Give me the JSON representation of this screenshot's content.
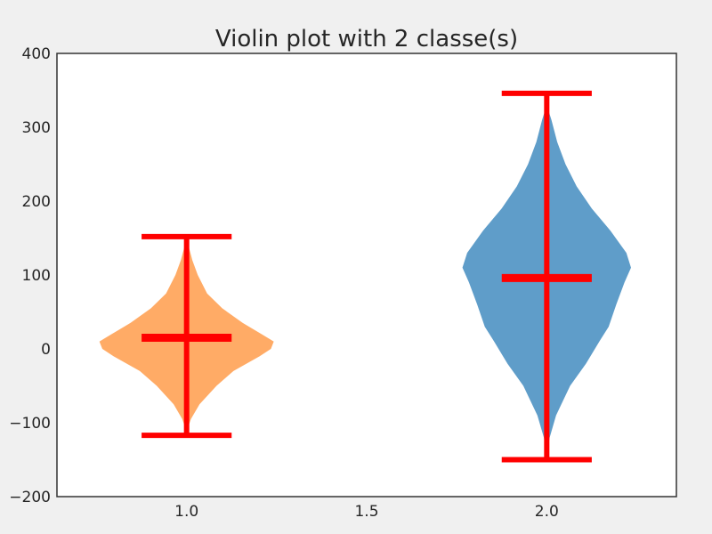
{
  "chart_data": {
    "type": "violin",
    "title": "Violin plot with 2 classe(s)",
    "xlabel": "",
    "ylabel": "",
    "xlim": [
      0.64,
      2.36
    ],
    "ylim": [
      -200,
      400
    ],
    "x_ticks": [
      1.0,
      1.5,
      2.0
    ],
    "x_tick_labels": [
      "1.0",
      "1.5",
      "2.0"
    ],
    "y_ticks": [
      -200,
      -100,
      0,
      100,
      200,
      300,
      400
    ],
    "y_tick_labels": [
      "−200",
      "−100",
      "0",
      "100",
      "200",
      "300",
      "400"
    ],
    "grid": false,
    "legend": "none",
    "series": [
      {
        "position": 1.0,
        "color": "#ffab66",
        "min": -117,
        "max": 152,
        "median": 15,
        "half_width_profile": [
          [
            -112,
            0.0
          ],
          [
            -95,
            0.012
          ],
          [
            -75,
            0.036
          ],
          [
            -50,
            0.083
          ],
          [
            -30,
            0.13
          ],
          [
            -10,
            0.203
          ],
          [
            0,
            0.234
          ],
          [
            10,
            0.242
          ],
          [
            20,
            0.208
          ],
          [
            35,
            0.156
          ],
          [
            55,
            0.099
          ],
          [
            75,
            0.057
          ],
          [
            100,
            0.031
          ],
          [
            120,
            0.016
          ],
          [
            140,
            0.005
          ],
          [
            148,
            0.0
          ]
        ]
      },
      {
        "position": 2.0,
        "color": "#5f9dc9",
        "min": -150,
        "max": 346,
        "median": 96,
        "half_width_profile": [
          [
            -145,
            0.0
          ],
          [
            -120,
            0.008
          ],
          [
            -90,
            0.026
          ],
          [
            -50,
            0.065
          ],
          [
            -20,
            0.109
          ],
          [
            10,
            0.146
          ],
          [
            30,
            0.172
          ],
          [
            60,
            0.193
          ],
          [
            90,
            0.216
          ],
          [
            110,
            0.234
          ],
          [
            130,
            0.221
          ],
          [
            160,
            0.177
          ],
          [
            190,
            0.125
          ],
          [
            220,
            0.083
          ],
          [
            250,
            0.052
          ],
          [
            280,
            0.029
          ],
          [
            310,
            0.013
          ],
          [
            330,
            0.0
          ]
        ]
      }
    ],
    "marker_color": "#ff0000"
  }
}
